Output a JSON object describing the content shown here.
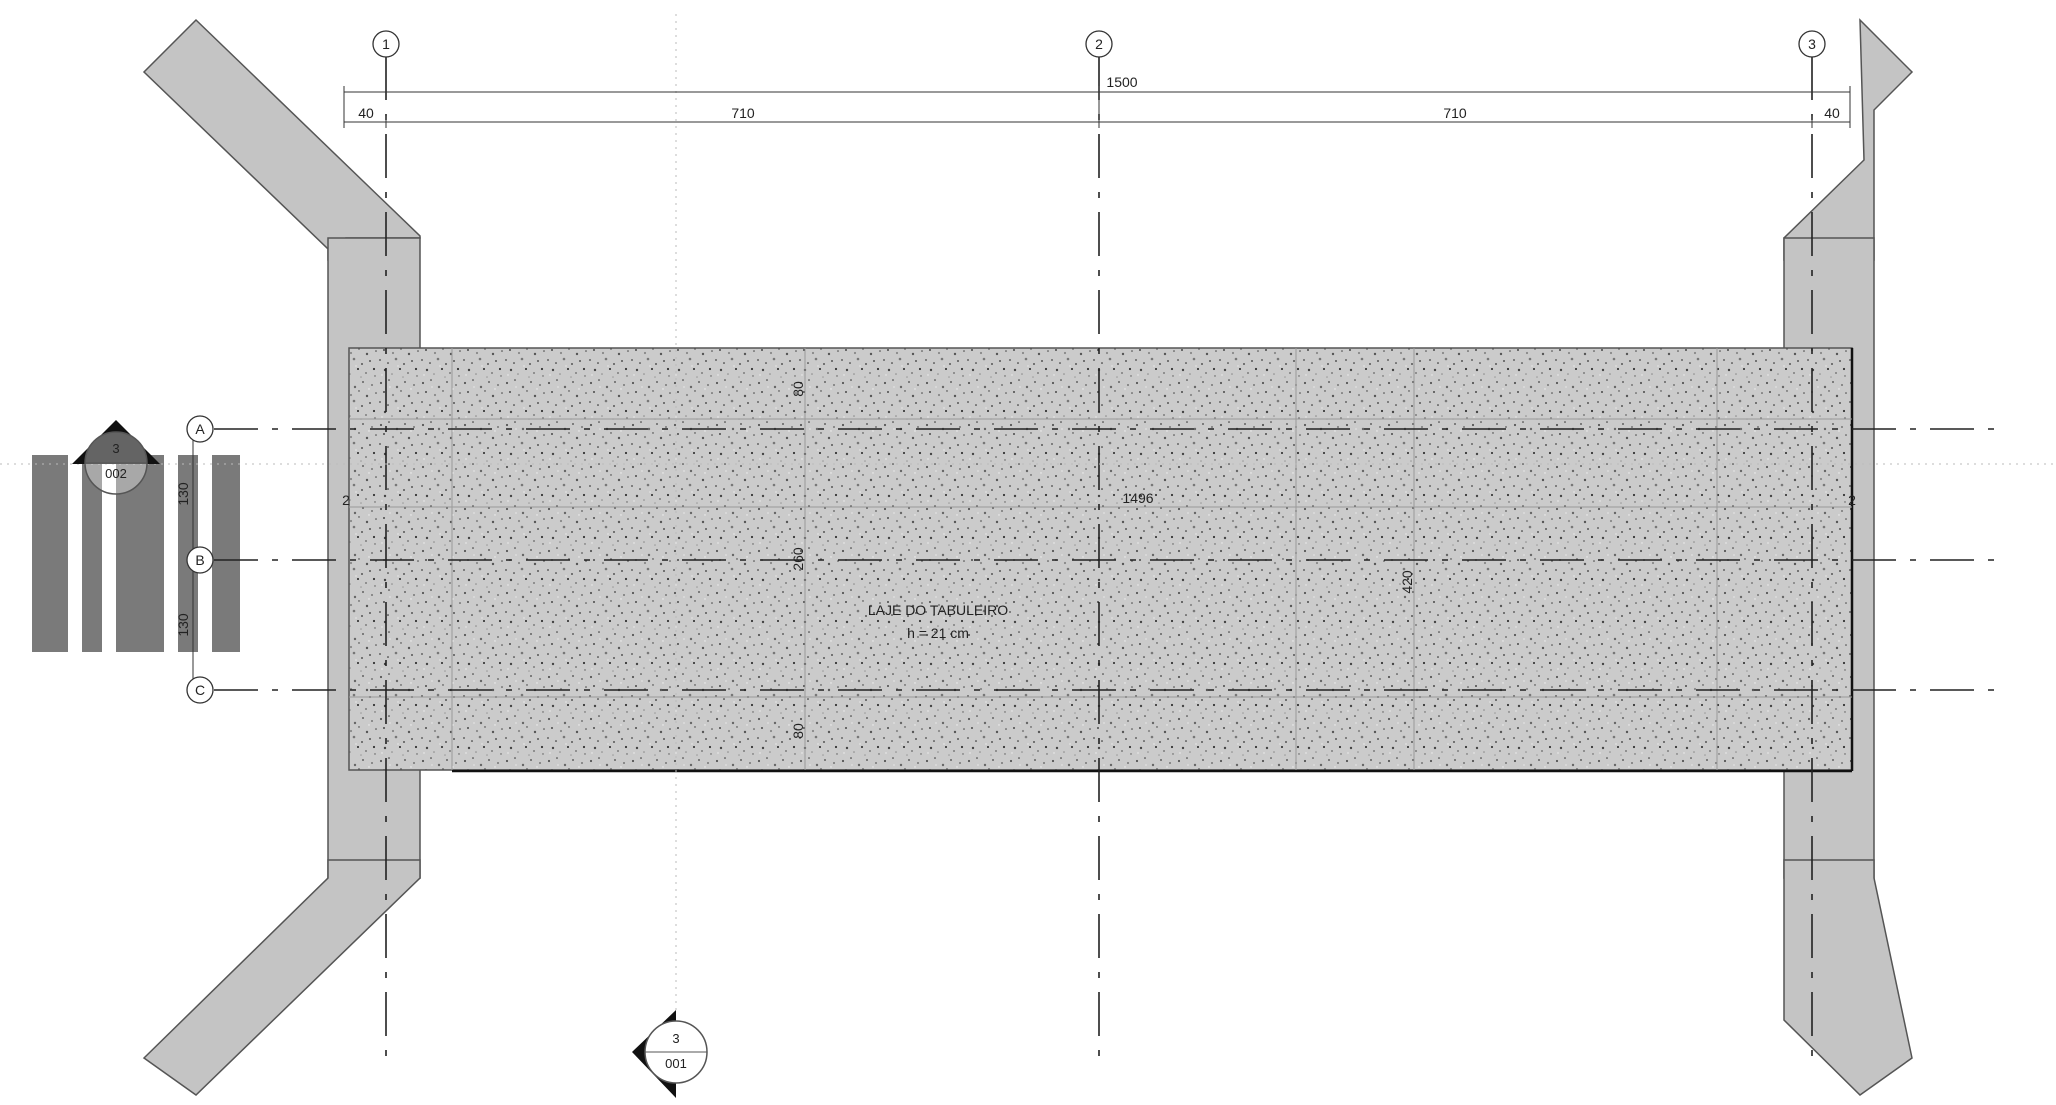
{
  "slab": {
    "title": "LAJE DO TABULEIRO",
    "thickness": "h = 21 cm"
  },
  "dimensions": {
    "overall": "1500",
    "span_left": "710",
    "span_right": "710",
    "edge_left": "40",
    "edge_right": "40",
    "deck_length": "1496",
    "width_top": "80",
    "width_mid": "260",
    "width_bottom": "80",
    "deck_width": "420",
    "axis_ab": "130",
    "axis_bc": "130",
    "abutment_left": "2",
    "abutment_right": "2"
  },
  "grid_columns": [
    "1",
    "2",
    "3"
  ],
  "grid_rows": [
    "A",
    "B",
    "C"
  ],
  "sections": [
    {
      "number": "3",
      "sheet": "002"
    },
    {
      "number": "3",
      "sheet": "001"
    }
  ],
  "colors": {
    "line": "#222222",
    "slab_fill": "#c9c9c9",
    "wall_fill": "#c4c4c4",
    "beam_fill": "#7a7a7a"
  }
}
